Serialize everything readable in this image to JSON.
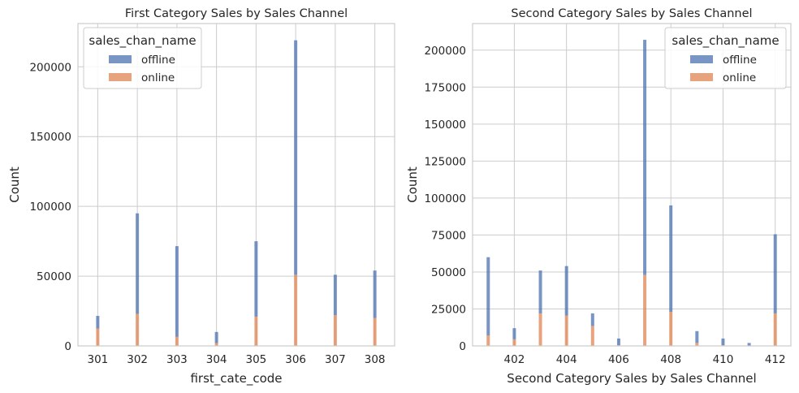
{
  "chart_data": [
    {
      "type": "bar",
      "stacked": true,
      "title": "First Category Sales by Sales Channel",
      "xlabel": "first_cate_code",
      "ylabel": "Count",
      "xlim": [
        300.5,
        308.5
      ],
      "ylim": [
        0,
        231000
      ],
      "xticks": [
        301,
        302,
        303,
        304,
        305,
        306,
        307,
        308
      ],
      "yticks": [
        0,
        50000,
        100000,
        150000,
        200000
      ],
      "grid": true,
      "legend": {
        "title": "sales_chan_name",
        "placement": "top-left",
        "entries": [
          "offline",
          "online"
        ]
      },
      "x": [
        301,
        302,
        303,
        304,
        305,
        306,
        307,
        308
      ],
      "series": [
        {
          "name": "offline",
          "values": [
            9000,
            72000,
            65000,
            8000,
            54000,
            168000,
            29000,
            34000
          ],
          "color": "#4c72b0"
        },
        {
          "name": "online",
          "values": [
            12500,
            23000,
            6500,
            2000,
            21000,
            51000,
            22000,
            20000
          ],
          "color": "#dd8452"
        }
      ]
    },
    {
      "type": "bar",
      "stacked": true,
      "title": "Second Category Sales by Sales Channel",
      "xlabel": "Second Category Sales by Sales Channel",
      "ylabel": "Count",
      "xlim": [
        400.4,
        412.6
      ],
      "ylim": [
        0,
        218000
      ],
      "xticks": [
        402,
        404,
        406,
        408,
        410,
        412
      ],
      "yticks": [
        0,
        25000,
        50000,
        75000,
        100000,
        125000,
        150000,
        175000,
        200000
      ],
      "grid": true,
      "legend": {
        "title": "sales_chan_name",
        "placement": "top-right",
        "entries": [
          "offline",
          "online"
        ]
      },
      "x": [
        401,
        402,
        403,
        404,
        405,
        406,
        407,
        408,
        409,
        410,
        411,
        412
      ],
      "series": [
        {
          "name": "offline",
          "values": [
            53000,
            7500,
            29000,
            33500,
            8500,
            4500,
            159000,
            72000,
            8000,
            4500,
            1800,
            53500
          ],
          "color": "#4c72b0"
        },
        {
          "name": "online",
          "values": [
            7000,
            4500,
            22000,
            20500,
            13500,
            500,
            48000,
            23000,
            2000,
            500,
            200,
            22000
          ],
          "color": "#dd8452"
        }
      ]
    }
  ]
}
